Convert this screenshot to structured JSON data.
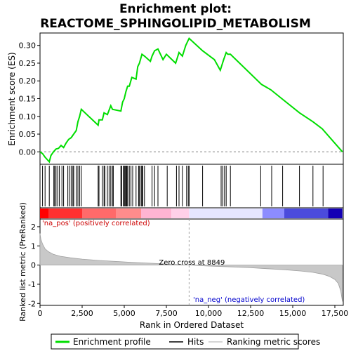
{
  "chart_data": {
    "type": "line",
    "title_line1": "Enrichment plot:",
    "title_line2": "REACTOME_SPHINGOLIPID_METABOLISM",
    "xlabel": "Rank in Ordered Dataset",
    "top_panel": {
      "ylabel": "Enrichment score (ES)",
      "ylim": [
        -0.035,
        0.335
      ],
      "yticks": [
        0.0,
        0.05,
        0.1,
        0.15,
        0.2,
        0.25,
        0.3
      ],
      "ytick_labels": [
        "0.00",
        "0.05",
        "0.10",
        "0.15",
        "0.20",
        "0.25",
        "0.30"
      ],
      "series_name": "Enrichment profile",
      "x": [
        0,
        150,
        300,
        550,
        650,
        800,
        950,
        1100,
        1250,
        1400,
        1550,
        1700,
        1850,
        2000,
        2150,
        2250,
        2350,
        2450,
        3450,
        3500,
        3700,
        3800,
        4000,
        4200,
        4300,
        4800,
        4900,
        5000,
        5100,
        5200,
        5300,
        5450,
        5700,
        5800,
        5900,
        6050,
        6200,
        6550,
        6650,
        6800,
        7000,
        7300,
        7500,
        8050,
        8250,
        8450,
        8650,
        8850,
        9650,
        10350,
        10700,
        10800,
        10900,
        11050,
        11150,
        11300,
        13150,
        13700,
        14350,
        15400,
        16200,
        16750,
        17950
      ],
      "y": [
        0.0,
        -0.005,
        -0.015,
        -0.028,
        -0.01,
        0.0,
        0.008,
        0.01,
        0.018,
        0.012,
        0.025,
        0.035,
        0.04,
        0.05,
        0.06,
        0.085,
        0.1,
        0.12,
        0.075,
        0.09,
        0.09,
        0.11,
        0.105,
        0.13,
        0.12,
        0.115,
        0.14,
        0.15,
        0.17,
        0.185,
        0.185,
        0.21,
        0.205,
        0.24,
        0.25,
        0.275,
        0.27,
        0.255,
        0.27,
        0.285,
        0.29,
        0.26,
        0.275,
        0.25,
        0.28,
        0.27,
        0.3,
        0.32,
        0.285,
        0.26,
        0.23,
        0.245,
        0.26,
        0.28,
        0.275,
        0.275,
        0.19,
        0.175,
        0.15,
        0.11,
        0.085,
        0.065,
        0.0
      ]
    },
    "hits": {
      "name": "Hits",
      "x": [
        150,
        300,
        550,
        820,
        870,
        950,
        1050,
        1150,
        1300,
        1400,
        1650,
        1750,
        1850,
        1950,
        2000,
        2150,
        2250,
        2350,
        2450,
        3450,
        3500,
        3700,
        3800,
        3850,
        4000,
        4100,
        4200,
        4300,
        4350,
        4800,
        4850,
        4950,
        5000,
        5050,
        5100,
        5150,
        5200,
        5300,
        5400,
        5500,
        5700,
        5850,
        5900,
        6000,
        6050,
        6100,
        6200,
        6650,
        6800,
        7000,
        7550,
        8100,
        8250,
        8450,
        8700,
        8800,
        8850,
        9650,
        10750,
        10850,
        10950,
        11050,
        11300,
        13100,
        13750,
        14400,
        15400,
        16200,
        16800
      ]
    },
    "heatmap_bar": {
      "pos_label": "'na_pos' (positively correlated)",
      "neg_label": "'na_neg' (negatively correlated)",
      "colors": {
        "pos_strong": "#ff0000",
        "pos_mid": "#ff8c8c",
        "pos_light": "#ffd0e8",
        "neutral": "#e6e6ff",
        "neg_mid": "#8c8cff",
        "neg_strong": "#4b4bdc",
        "neg_darkest": "#1400b4"
      }
    },
    "bottom_panel": {
      "ylabel": "Ranked list metric (PreRanked)",
      "ylim": [
        -2.1,
        2.4
      ],
      "yticks": [
        -2,
        -1,
        0,
        1,
        2
      ],
      "ytick_labels": [
        "-2",
        "-1",
        "0",
        "1",
        "2"
      ],
      "series_name": "Ranking metric scores",
      "x": [
        0,
        50,
        150,
        300,
        500,
        800,
        1200,
        1800,
        2500,
        3500,
        4500,
        5500,
        6500,
        7500,
        8849,
        10000,
        11500,
        12500,
        13500,
        14500,
        15500,
        16200,
        16800,
        17200,
        17500,
        17700,
        17850,
        17950
      ],
      "y": [
        1.65,
        1.35,
        1.1,
        0.85,
        0.7,
        0.56,
        0.46,
        0.38,
        0.31,
        0.24,
        0.19,
        0.14,
        0.1,
        0.06,
        0.0,
        -0.05,
        -0.1,
        -0.14,
        -0.19,
        -0.24,
        -0.31,
        -0.38,
        -0.48,
        -0.6,
        -0.75,
        -0.95,
        -1.35,
        -1.9
      ],
      "zero_cross_label": "Zero cross at 8849",
      "zero_cross_x": 8849
    },
    "xlim": [
      0,
      18000
    ],
    "xticks": [
      0,
      2500,
      5000,
      7500,
      10000,
      12500,
      15000,
      17500
    ],
    "xtick_labels": [
      "0",
      "2,500",
      "5,000",
      "7,500",
      "10,000",
      "12,500",
      "15,000",
      "17,500"
    ],
    "legend": {
      "placement": "bottom",
      "items": [
        "Enrichment profile",
        "Hits",
        "Ranking metric scores"
      ],
      "colors": [
        "#00dd00",
        "#000000",
        "#c8c8c8"
      ]
    }
  }
}
